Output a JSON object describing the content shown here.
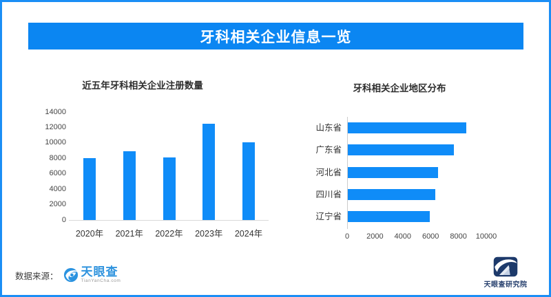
{
  "header": {
    "title": "牙科相关企业信息一览"
  },
  "colors": {
    "brand_blue": "#0b86f2",
    "bar_blue": "#0f8cf8",
    "border_blue": "#1b8ef5",
    "title_text": "#2d2d2d",
    "axis_text": "#444444",
    "logo_blue": "#3194de",
    "institute_navy": "#27406e"
  },
  "chart_data": [
    {
      "type": "bar",
      "orientation": "vertical",
      "title": "近五年牙科相关企业注册数量",
      "categories": [
        "2020年",
        "2021年",
        "2022年",
        "2023年",
        "2024年"
      ],
      "values": [
        8000,
        8900,
        8100,
        12500,
        10100
      ],
      "xlabel": "",
      "ylabel": "",
      "ylim": [
        0,
        14000
      ],
      "yticks": [
        0,
        2000,
        4000,
        6000,
        8000,
        10000,
        12000,
        14000
      ],
      "grid": false,
      "legend": false
    },
    {
      "type": "bar",
      "orientation": "horizontal",
      "title": "牙科相关企业地区分布",
      "categories": [
        "山东省",
        "广东省",
        "河北省",
        "四川省",
        "辽宁省"
      ],
      "values": [
        8500,
        7600,
        6500,
        6300,
        5900
      ],
      "xlabel": "",
      "ylabel": "",
      "xlim": [
        0,
        10000
      ],
      "xticks": [
        0,
        2000,
        4000,
        6000,
        8000,
        10000
      ],
      "grid": false,
      "legend": false
    }
  ],
  "footer": {
    "source_label": "数据来源：",
    "source_logo_text": "天眼查",
    "source_logo_sub": "TianYanCha.com",
    "institute_name": "天眼查研究院"
  }
}
